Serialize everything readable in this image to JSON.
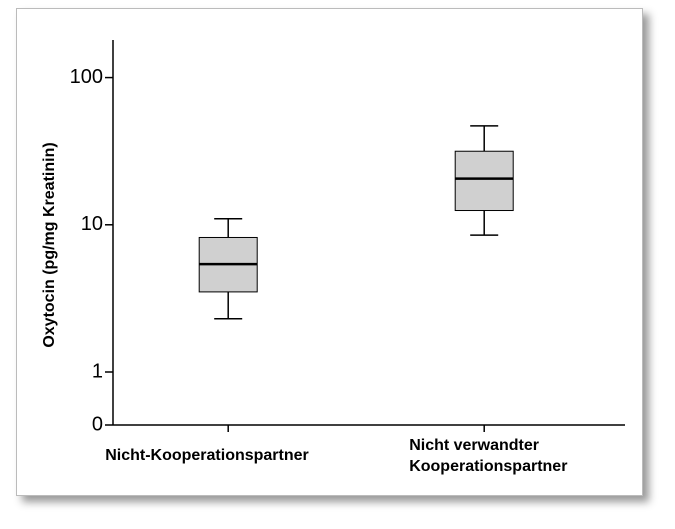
{
  "chart_data": {
    "type": "boxplot",
    "y_label": "Oxytocin (pg/mg Kreatinin)",
    "categories": [
      "Nicht-Kooperationspartner",
      "Nicht verwandter\nKooperationspartner"
    ],
    "boxes": [
      {
        "whisker_low": 2.3,
        "q1": 3.5,
        "median": 5.4,
        "q3": 8.2,
        "whisker_high": 11
      },
      {
        "whisker_low": 8.5,
        "q1": 12.5,
        "median": 20.6,
        "q3": 31.6,
        "whisker_high": 47
      }
    ],
    "color": "#d0d0d0",
    "ylim": [
      0,
      180
    ],
    "y_log": true,
    "yticks": [
      0,
      1,
      10,
      100
    ]
  }
}
